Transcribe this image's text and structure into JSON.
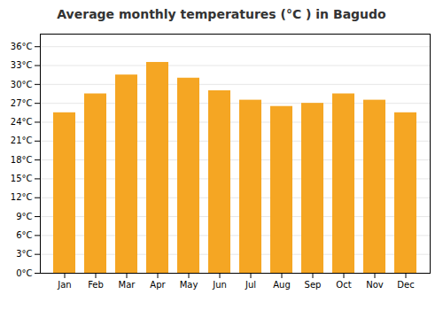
{
  "chart_data": {
    "type": "bar",
    "title": "Average monthly temperatures (°C ) in Bagudo",
    "categories": [
      "Jan",
      "Feb",
      "Mar",
      "Apr",
      "May",
      "Jun",
      "Jul",
      "Aug",
      "Sep",
      "Oct",
      "Nov",
      "Dec"
    ],
    "values": [
      25.5,
      28.5,
      31.5,
      33.5,
      31.0,
      29.0,
      27.5,
      26.5,
      27.0,
      28.5,
      27.5,
      25.5
    ],
    "color": "#F5A623",
    "ylim": [
      0,
      38
    ],
    "yticks": [
      {
        "value": 0,
        "label": "0°C"
      },
      {
        "value": 3,
        "label": "3°C"
      },
      {
        "value": 6,
        "label": "6°C"
      },
      {
        "value": 9,
        "label": "9°C"
      },
      {
        "value": 12,
        "label": "12°C"
      },
      {
        "value": 15,
        "label": "15°C"
      },
      {
        "value": 18,
        "label": "18°C"
      },
      {
        "value": 21,
        "label": "21°C"
      },
      {
        "value": 24,
        "label": "24°C"
      },
      {
        "value": 27,
        "label": "27°C"
      },
      {
        "value": 30,
        "label": "30°C"
      },
      {
        "value": 33,
        "label": "33°C"
      },
      {
        "value": 36,
        "label": "36°C"
      }
    ],
    "grid": true
  }
}
